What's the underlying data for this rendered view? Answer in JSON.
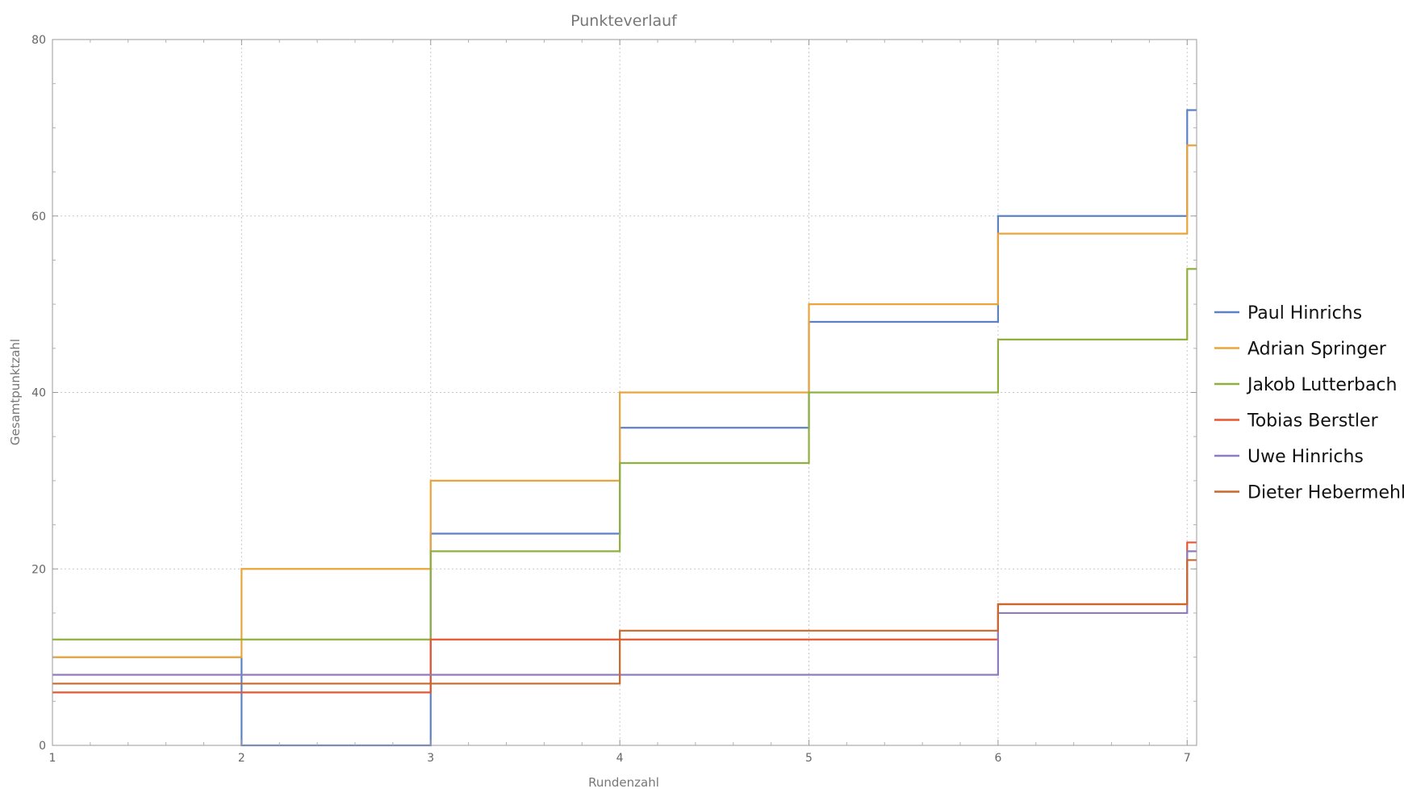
{
  "chart_data": {
    "type": "line",
    "step": "post",
    "title": "Punkteverlauf",
    "xlabel": "Rundenzahl",
    "ylabel": "Gesamtpunktzahl",
    "xlim": [
      1,
      7.05
    ],
    "ylim": [
      0,
      80
    ],
    "x_ticks": [
      1,
      2,
      3,
      4,
      5,
      6,
      7
    ],
    "y_ticks": [
      0,
      20,
      40,
      60,
      80
    ],
    "grid": true,
    "legend_position": "right",
    "x": [
      1,
      2,
      3,
      4,
      5,
      6,
      7
    ],
    "series": [
      {
        "name": "Paul Hinrichs",
        "color": "#5e81c6",
        "values": [
          10,
          0,
          24,
          36,
          48,
          60,
          72
        ]
      },
      {
        "name": "Adrian Springer",
        "color": "#e9a53a",
        "values": [
          10,
          20,
          30,
          40,
          50,
          58,
          68
        ]
      },
      {
        "name": "Jakob Lutterbach",
        "color": "#8fb03e",
        "values": [
          12,
          12,
          22,
          32,
          40,
          46,
          54
        ]
      },
      {
        "name": "Tobias Berstler",
        "color": "#e7562f",
        "values": [
          6,
          6,
          12,
          12,
          12,
          16,
          23
        ]
      },
      {
        "name": "Uwe Hinrichs",
        "color": "#8f7cc0",
        "values": [
          8,
          8,
          8,
          8,
          8,
          15,
          22
        ]
      },
      {
        "name": "Dieter Hebermehl",
        "color": "#c8682c",
        "values": [
          7,
          7,
          7,
          13,
          13,
          16,
          21
        ]
      }
    ]
  }
}
